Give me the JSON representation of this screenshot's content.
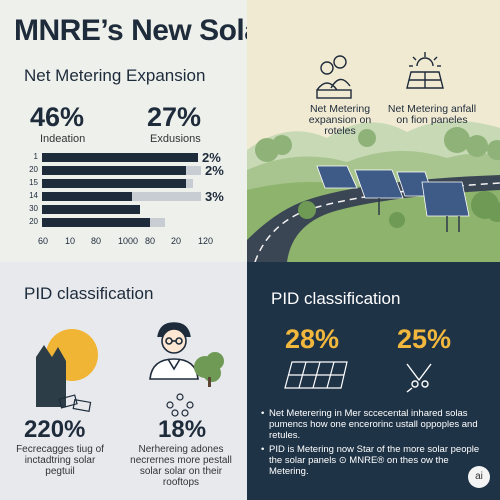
{
  "title": "MNRE’s New Solar Rules",
  "net_metering": {
    "heading": "Net Metering Expansion",
    "stat1": {
      "value": "46%",
      "label": "Indeation"
    },
    "stat2": {
      "value": "27%",
      "label": "Exdusions"
    },
    "bars": [
      {
        "label": "1",
        "fill": 0.95,
        "track": 0.95,
        "pct": "2%"
      },
      {
        "label": "20",
        "fill": 0.88,
        "track": 0.97,
        "pct": "2%"
      },
      {
        "label": "15",
        "fill": 0.88,
        "track": 0.92,
        "pct": ""
      },
      {
        "label": "14",
        "fill": 0.55,
        "track": 0.97,
        "pct": "3%"
      },
      {
        "label": "30",
        "fill": 0.6,
        "track": 0.6,
        "pct": ""
      },
      {
        "label": "20",
        "fill": 0.66,
        "track": 0.75,
        "pct": ""
      }
    ],
    "x_ticks": [
      "60",
      "10",
      "80",
      "1000",
      "80",
      "20",
      "120"
    ]
  },
  "scene": {
    "label_left": "Net Metering expansion on roteles",
    "label_right": "Net Metering anfall on fion paneles"
  },
  "pid_left": {
    "heading": "PID classification",
    "stat1": {
      "value": "220%",
      "label": "Fecrecagges tiug of inctadtring solar pegtuil"
    },
    "stat2": {
      "value": "18%",
      "label": "Nerhereing adones necrernes more pestall solar solar on their rooftops"
    }
  },
  "pid_right": {
    "heading": "PID classification",
    "stat1": {
      "value": "28%"
    },
    "stat2": {
      "value": "25%"
    },
    "bullets": [
      "Net Meterering in Mer sccecental inhared solas pumencs how one encerorinc ustall oppoples and retules.",
      "PID is Metering now Star of the more solar people the solar panels ⊙ MNRE® on thes ow the Metering."
    ]
  },
  "badge": "ai",
  "colors": {
    "navy": "#1e2b3a",
    "accent": "#f1b83d",
    "panel_dark": "#1f3347",
    "sun": "#f0b534"
  }
}
